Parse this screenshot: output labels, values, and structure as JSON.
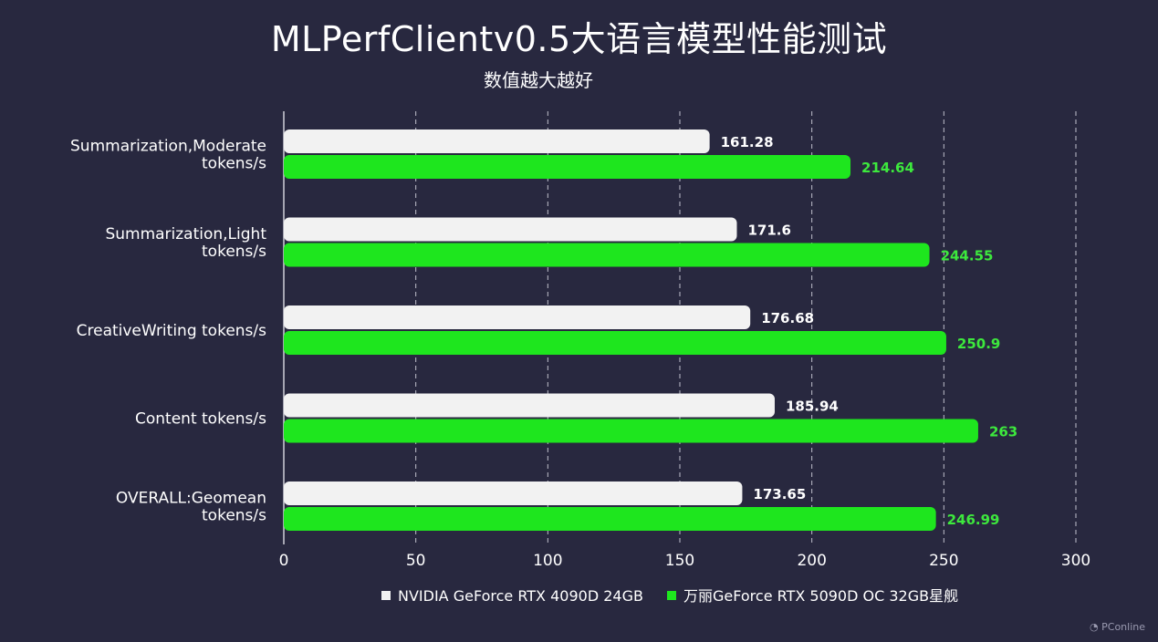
{
  "chart_data": {
    "type": "bar",
    "orientation": "horizontal",
    "title": "MLPerfClientv0.5大语言模型性能测试",
    "subtitle": "数值越大越好",
    "categories": [
      [
        "Summarization,Moderate",
        "tokens/s"
      ],
      [
        "Summarization,Light",
        "tokens/s"
      ],
      [
        "CreativeWriting tokens/s"
      ],
      [
        "Content tokens/s"
      ],
      [
        "OVERALL:Geomean",
        "tokens/s"
      ]
    ],
    "series": [
      {
        "name": "NVIDIA GeForce RTX 4090D 24GB",
        "color": "#f2f2f2",
        "label_color": "#ffffff",
        "values": [
          161.28,
          171.6,
          176.68,
          185.94,
          173.65
        ],
        "labels": [
          "161.28",
          "171.6",
          "176.68",
          "185.94",
          "173.65"
        ]
      },
      {
        "name": "万丽GeForce RTX 5090D OC 32GB星舰",
        "color": "#1ee61e",
        "label_color": "#3de83d",
        "values": [
          214.64,
          244.55,
          250.9,
          263,
          246.99
        ],
        "labels": [
          "214.64",
          "244.55",
          "250.9",
          "263",
          "246.99"
        ]
      }
    ],
    "xlim": [
      0,
      300
    ],
    "x_ticks": [
      0,
      50,
      100,
      150,
      200,
      250,
      300
    ],
    "grid": "vertical dashed",
    "legend_position": "bottom"
  },
  "watermark": "PConline",
  "colors": {
    "background": "#28283f",
    "axis": "#cfcfd8",
    "grid": "#bfbfcc"
  }
}
